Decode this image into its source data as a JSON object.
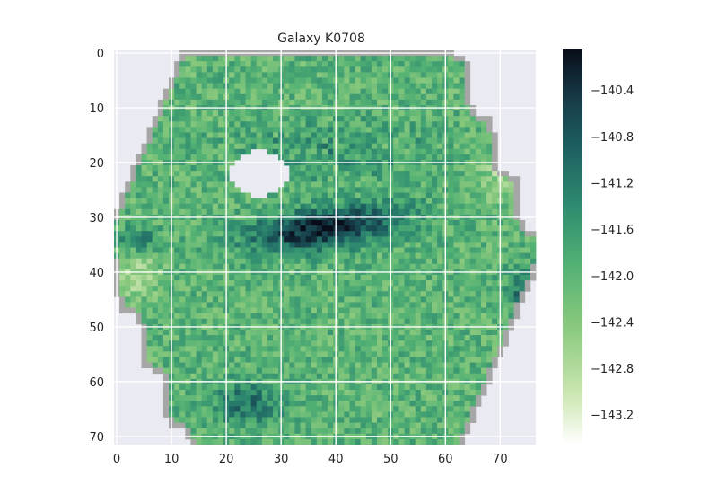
{
  "chart_data": {
    "type": "heatmap",
    "title": "Galaxy K0708",
    "xlabel": "",
    "ylabel": "",
    "xlim": [
      -0.5,
      76.5
    ],
    "ylim": [
      71.5,
      -0.5
    ],
    "x_ticks": [
      0,
      10,
      20,
      30,
      40,
      50,
      60,
      70
    ],
    "y_ticks": [
      0,
      10,
      20,
      30,
      40,
      50,
      60,
      70
    ],
    "grid": true,
    "colormap": "cubehelix (dark navy to light green)",
    "colorbar": {
      "range": [
        -143.45,
        -140.05
      ],
      "ticks": [
        -140.4,
        -140.8,
        -141.2,
        -141.6,
        -142.0,
        -142.4,
        -142.8,
        -143.2
      ],
      "tick_labels": [
        "−140.4",
        "−140.8",
        "−141.2",
        "−141.6",
        "−142.0",
        "−142.4",
        "−142.8",
        "−143.2"
      ]
    },
    "field": {
      "center": [
        37.5,
        36.5
      ],
      "background_value": -142.0,
      "features": [
        {
          "name": "dark bar",
          "center": [
            38,
            32
          ],
          "value_offset": 1.9
        },
        {
          "name": "upper dark arc",
          "center": [
            40,
            18
          ],
          "value_offset": 0.8
        },
        {
          "name": "lower-left dark clump",
          "center": [
            24,
            64
          ],
          "value_offset": 0.9
        },
        {
          "name": "right edge clump",
          "center": [
            74,
            43
          ],
          "value_offset": 0.9
        },
        {
          "name": "left edge clump",
          "center": [
            4,
            34
          ],
          "value_offset": 0.9
        },
        {
          "name": "left light region",
          "center": [
            4,
            41
          ],
          "value_offset": -0.7
        },
        {
          "name": "right light region",
          "center": [
            70,
            22
          ],
          "value_offset": -0.6
        },
        {
          "name": "blank hole",
          "center": [
            26,
            22
          ],
          "value": null
        }
      ]
    }
  },
  "colors": {
    "axes_background": "#eaeaf2",
    "grid": "#ffffff",
    "masked_edge": "#a6a6a6",
    "text": "#262626"
  }
}
